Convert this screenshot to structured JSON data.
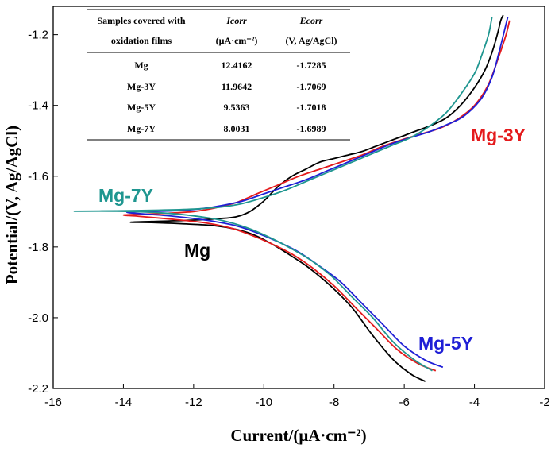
{
  "chart_data": {
    "type": "line",
    "title": "",
    "xlabel": "Current/(μA·cm⁻²)",
    "ylabel": "Potential/(V, Ag/AgCl)",
    "xlim": [
      -16,
      -2
    ],
    "ylim": [
      -2.2,
      -1.12
    ],
    "xticks": [
      -16,
      -14,
      -12,
      -10,
      -8,
      -6,
      -4,
      -2
    ],
    "yticks": [
      -2.2,
      -2.0,
      -1.8,
      -1.6,
      -1.4,
      -1.2
    ],
    "xtick_labels": [
      "-16",
      "-14",
      "-12",
      "-10",
      "-8",
      "-6",
      "-4",
      "-2"
    ],
    "ytick_labels": [
      "-2.2",
      "-2.0",
      "-1.8",
      "-1.6",
      "-1.4",
      "-1.2"
    ],
    "grid": false,
    "series": [
      {
        "name": "Mg",
        "color": "#000000",
        "label_text": "Mg",
        "x": [
          -5.4,
          -5.8,
          -6.3,
          -6.9,
          -7.5,
          -8.1,
          -8.7,
          -9.3,
          -9.8,
          -10.3,
          -10.8,
          -11.4,
          -12.2,
          -13.2,
          -13.8,
          -13.2,
          -12.2,
          -11.3,
          -10.8,
          -10.4,
          -10.0,
          -9.6,
          -9.2,
          -8.8,
          -8.4,
          -8.0,
          -7.6,
          -7.2,
          -6.8,
          -6.4,
          -6.0,
          -5.6,
          -5.2,
          -4.8,
          -4.4,
          -4.0,
          -3.7,
          -3.5,
          -3.35,
          -3.25,
          -3.18
        ],
        "y": [
          -2.18,
          -2.16,
          -2.12,
          -2.05,
          -1.97,
          -1.91,
          -1.86,
          -1.82,
          -1.79,
          -1.765,
          -1.75,
          -1.74,
          -1.735,
          -1.731,
          -1.73,
          -1.728,
          -1.725,
          -1.72,
          -1.715,
          -1.7,
          -1.67,
          -1.63,
          -1.6,
          -1.58,
          -1.56,
          -1.55,
          -1.54,
          -1.53,
          -1.515,
          -1.5,
          -1.485,
          -1.47,
          -1.455,
          -1.435,
          -1.4,
          -1.35,
          -1.3,
          -1.25,
          -1.2,
          -1.16,
          -1.145
        ]
      },
      {
        "name": "Mg-3Y",
        "color": "#e41a1c",
        "label_text": "Mg-3Y",
        "x": [
          -5.1,
          -5.6,
          -6.2,
          -6.8,
          -7.4,
          -8.0,
          -8.6,
          -9.2,
          -9.8,
          -10.4,
          -11.0,
          -11.8,
          -12.8,
          -13.6,
          -14.0,
          -13.6,
          -12.8,
          -12.0,
          -11.4,
          -10.8,
          -10.2,
          -9.6,
          -9.0,
          -8.4,
          -7.8,
          -7.2,
          -6.6,
          -6.0,
          -5.5,
          -5.0,
          -4.5,
          -4.0,
          -3.6,
          -3.3,
          -3.1,
          -3.0
        ],
        "y": [
          -2.15,
          -2.13,
          -2.09,
          -2.03,
          -1.97,
          -1.91,
          -1.86,
          -1.82,
          -1.79,
          -1.765,
          -1.745,
          -1.73,
          -1.72,
          -1.713,
          -1.71,
          -1.708,
          -1.705,
          -1.7,
          -1.69,
          -1.675,
          -1.65,
          -1.625,
          -1.6,
          -1.58,
          -1.56,
          -1.54,
          -1.515,
          -1.495,
          -1.48,
          -1.465,
          -1.44,
          -1.4,
          -1.34,
          -1.26,
          -1.2,
          -1.16
        ]
      },
      {
        "name": "Mg-5Y",
        "color": "#1f1fd6",
        "label_text": "Mg-5Y",
        "x": [
          -4.9,
          -5.4,
          -6.0,
          -6.6,
          -7.2,
          -7.8,
          -8.4,
          -9.0,
          -9.6,
          -10.2,
          -10.8,
          -11.6,
          -12.6,
          -13.5,
          -13.9,
          -13.5,
          -12.6,
          -11.8,
          -11.2,
          -10.6,
          -10.0,
          -9.4,
          -8.8,
          -8.2,
          -7.6,
          -7.0,
          -6.4,
          -5.8,
          -5.3,
          -4.8,
          -4.3,
          -3.8,
          -3.5,
          -3.3,
          -3.15,
          -3.05
        ],
        "y": [
          -2.14,
          -2.12,
          -2.08,
          -2.02,
          -1.96,
          -1.9,
          -1.855,
          -1.815,
          -1.785,
          -1.76,
          -1.74,
          -1.725,
          -1.713,
          -1.706,
          -1.702,
          -1.7,
          -1.698,
          -1.692,
          -1.683,
          -1.67,
          -1.65,
          -1.63,
          -1.61,
          -1.585,
          -1.56,
          -1.535,
          -1.51,
          -1.49,
          -1.475,
          -1.455,
          -1.43,
          -1.38,
          -1.32,
          -1.25,
          -1.19,
          -1.15
        ]
      },
      {
        "name": "Mg-7Y",
        "color": "#1f9690",
        "label_text": "Mg-7Y",
        "x": [
          -5.2,
          -5.7,
          -6.3,
          -6.9,
          -7.5,
          -8.1,
          -8.7,
          -9.3,
          -9.9,
          -10.5,
          -11.2,
          -12.0,
          -13.0,
          -14.2,
          -15.4,
          -14.2,
          -13.0,
          -12.0,
          -11.2,
          -10.6,
          -10.0,
          -9.4,
          -8.8,
          -8.2,
          -7.6,
          -7.0,
          -6.4,
          -5.8,
          -5.3,
          -4.8,
          -4.4,
          -4.0,
          -3.8,
          -3.6,
          -3.5
        ],
        "y": [
          -2.15,
          -2.12,
          -2.07,
          -2.0,
          -1.94,
          -1.88,
          -1.835,
          -1.8,
          -1.77,
          -1.745,
          -1.725,
          -1.712,
          -1.703,
          -1.699,
          -1.699,
          -1.698,
          -1.696,
          -1.693,
          -1.687,
          -1.677,
          -1.66,
          -1.64,
          -1.615,
          -1.59,
          -1.565,
          -1.54,
          -1.515,
          -1.49,
          -1.46,
          -1.42,
          -1.37,
          -1.31,
          -1.26,
          -1.2,
          -1.15
        ]
      }
    ],
    "table": {
      "headers": [
        [
          "Samples covered with",
          "oxidation films"
        ],
        [
          "Icorr",
          "(μA·cm⁻²)"
        ],
        [
          "Ecorr",
          "(V, Ag/AgCl)"
        ]
      ],
      "rows": [
        [
          "Mg",
          "12.4162",
          "-1.7285"
        ],
        [
          "Mg-3Y",
          "11.9642",
          "-1.7069"
        ],
        [
          "Mg-5Y",
          "9.5363",
          "-1.7018"
        ],
        [
          "Mg-7Y",
          "8.0031",
          "-1.6989"
        ]
      ]
    }
  }
}
